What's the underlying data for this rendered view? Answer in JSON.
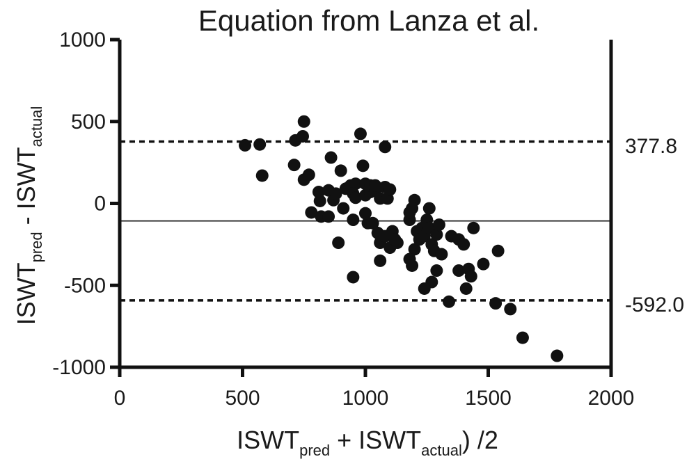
{
  "chart_data": {
    "type": "scatter",
    "title": "Equation from Lanza et al.",
    "xlabel": {
      "main1": "ISWT",
      "sub1": "pred",
      "main2": " + ISWT",
      "sub2": "actual",
      "main3": ") /2"
    },
    "ylabel": {
      "main1": "ISWT",
      "sub1": "pred",
      "main2": " - ISWT",
      "sub2": "actual"
    },
    "xlim": [
      0,
      2000
    ],
    "ylim": [
      -1000,
      1000
    ],
    "x_ticks": [
      0,
      500,
      1000,
      1500,
      2000
    ],
    "y_ticks": [
      1000,
      500,
      0,
      -500,
      -1000
    ],
    "x_tick_labels": [
      "0",
      "500",
      "1000",
      "1500",
      "2000"
    ],
    "y_tick_labels": [
      "1000",
      "500",
      "0",
      "-500",
      "-1000"
    ],
    "mean_line": -107,
    "upper_loa": 377.8,
    "lower_loa": -592.0,
    "upper_loa_label": "377.8",
    "lower_loa_label": "-592.0",
    "points": [
      [
        510,
        355
      ],
      [
        570,
        360
      ],
      [
        580,
        170
      ],
      [
        715,
        385
      ],
      [
        750,
        500
      ],
      [
        745,
        410
      ],
      [
        750,
        145
      ],
      [
        770,
        175
      ],
      [
        710,
        235
      ],
      [
        780,
        -55
      ],
      [
        810,
        70
      ],
      [
        815,
        15
      ],
      [
        820,
        -80
      ],
      [
        850,
        -80
      ],
      [
        860,
        280
      ],
      [
        850,
        80
      ],
      [
        870,
        20
      ],
      [
        880,
        60
      ],
      [
        900,
        200
      ],
      [
        910,
        -30
      ],
      [
        920,
        90
      ],
      [
        940,
        110
      ],
      [
        960,
        120
      ],
      [
        950,
        60
      ],
      [
        960,
        35
      ],
      [
        980,
        425
      ],
      [
        990,
        230
      ],
      [
        1000,
        50
      ],
      [
        1000,
        120
      ],
      [
        1020,
        70
      ],
      [
        1020,
        110
      ],
      [
        1040,
        80
      ],
      [
        1040,
        110
      ],
      [
        1060,
        30
      ],
      [
        1080,
        345
      ],
      [
        1080,
        100
      ],
      [
        1090,
        30
      ],
      [
        1100,
        85
      ],
      [
        1000,
        -60
      ],
      [
        950,
        -100
      ],
      [
        1010,
        -120
      ],
      [
        1030,
        -120
      ],
      [
        1050,
        -180
      ],
      [
        1060,
        -240
      ],
      [
        1080,
        -200
      ],
      [
        1060,
        -350
      ],
      [
        1110,
        -170
      ],
      [
        1100,
        -270
      ],
      [
        1130,
        -240
      ],
      [
        1120,
        -220
      ],
      [
        1180,
        -100
      ],
      [
        1200,
        20
      ],
      [
        1190,
        -30
      ],
      [
        1180,
        -55
      ],
      [
        1210,
        -170
      ],
      [
        1200,
        -280
      ],
      [
        1180,
        -340
      ],
      [
        1190,
        -380
      ],
      [
        1220,
        -220
      ],
      [
        1230,
        -150
      ],
      [
        1240,
        -200
      ],
      [
        1250,
        -100
      ],
      [
        1260,
        -30
      ],
      [
        1260,
        -150
      ],
      [
        1270,
        -250
      ],
      [
        1280,
        -290
      ],
      [
        1290,
        -190
      ],
      [
        1300,
        -130
      ],
      [
        1290,
        -410
      ],
      [
        1270,
        -480
      ],
      [
        1240,
        -520
      ],
      [
        1310,
        -310
      ],
      [
        1340,
        -600
      ],
      [
        1350,
        -200
      ],
      [
        1380,
        -220
      ],
      [
        1380,
        -410
      ],
      [
        1400,
        -250
      ],
      [
        1410,
        -520
      ],
      [
        1420,
        -400
      ],
      [
        1430,
        -445
      ],
      [
        1440,
        -150
      ],
      [
        1480,
        -370
      ],
      [
        1530,
        -610
      ],
      [
        1540,
        -290
      ],
      [
        1590,
        -645
      ],
      [
        1640,
        -820
      ],
      [
        1780,
        -930
      ],
      [
        950,
        -450
      ],
      [
        890,
        -240
      ]
    ]
  }
}
